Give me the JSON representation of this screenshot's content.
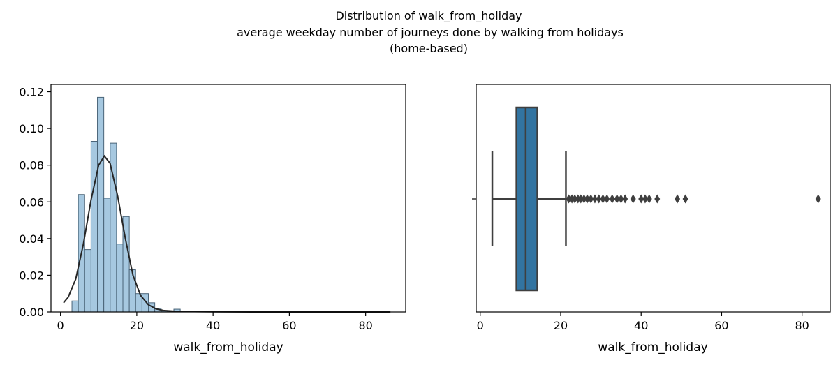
{
  "title_lines": [
    "Distribution of walk_from_holiday",
    "average weekday number of journeys done by walking from holidays",
    "(home-based)"
  ],
  "chart_data": [
    {
      "type": "bar",
      "subtype": "histogram_with_density_curve",
      "xlabel": "walk_from_holiday",
      "ylabel": "",
      "xlim": [
        -2.5,
        90.5
      ],
      "ylim": [
        0,
        0.124
      ],
      "xticks": [
        0,
        20,
        40,
        60,
        80
      ],
      "yticks": [
        0.0,
        0.02,
        0.04,
        0.06,
        0.08,
        0.1,
        0.12
      ],
      "ytick_labels": [
        "0.00",
        "0.02",
        "0.04",
        "0.06",
        "0.08",
        "0.10",
        "0.12"
      ],
      "bin_edges": [
        3.0,
        4.67,
        6.34,
        8.01,
        9.68,
        11.35,
        13.02,
        14.69,
        16.36,
        18.03,
        19.7,
        21.37,
        23.04,
        24.71,
        26.38,
        28.05,
        29.72,
        31.39,
        33.06,
        34.73,
        36.4
      ],
      "values": [
        0.006,
        0.064,
        0.034,
        0.093,
        0.117,
        0.062,
        0.092,
        0.037,
        0.052,
        0.023,
        0.01,
        0.01,
        0.005,
        0.002,
        0.0005,
        0.0005,
        0.0015,
        0.0005,
        0.0005,
        0.0005
      ],
      "density_curve": {
        "x": [
          0.8,
          2,
          4,
          6,
          8,
          10,
          11.5,
          13,
          15,
          17,
          19,
          21,
          23,
          25,
          27,
          30,
          35,
          40,
          50,
          60,
          70,
          80,
          86.5
        ],
        "y": [
          0.005,
          0.008,
          0.018,
          0.037,
          0.061,
          0.08,
          0.085,
          0.081,
          0.063,
          0.04,
          0.02,
          0.009,
          0.004,
          0.0017,
          0.0008,
          0.0004,
          0.0002,
          0.0001,
          0.0,
          0.0,
          0.0,
          0.0,
          0.0
        ]
      },
      "colors": {
        "bars": "#a6c8e0",
        "bar_edge": "#4a6478",
        "curve": "#262626"
      }
    },
    {
      "type": "box",
      "xlabel": "walk_from_holiday",
      "xlim": [
        -1,
        87
      ],
      "xticks": [
        0,
        20,
        40,
        60,
        80
      ],
      "whisker_low": 3,
      "q1": 9,
      "median": 11.3,
      "q3": 14.2,
      "whisker_high": 21.3,
      "outliers": [
        22,
        22.8,
        23.5,
        24.3,
        25,
        25.8,
        26.6,
        27.5,
        28.5,
        29.5,
        30.5,
        31.5,
        32.8,
        34,
        35,
        36,
        38,
        40,
        41,
        42,
        44,
        49,
        51,
        84
      ],
      "colors": {
        "box": "#3274a1",
        "lines": "#3f3f3f"
      }
    }
  ]
}
